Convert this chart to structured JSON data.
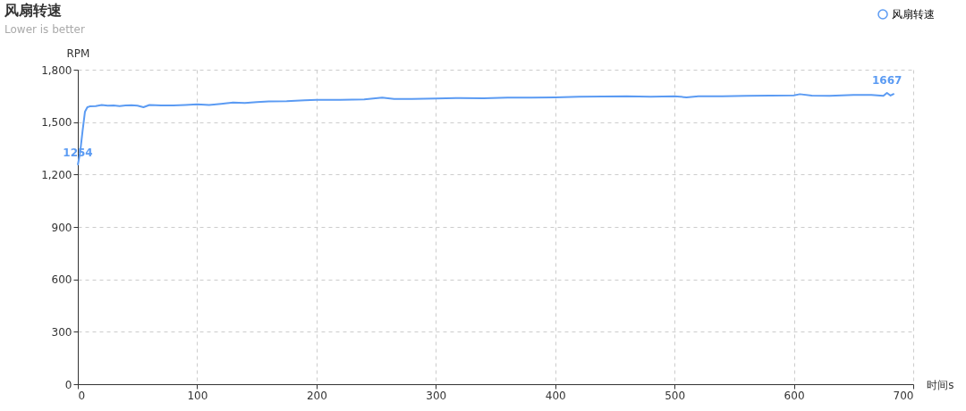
{
  "chart_data": {
    "type": "line",
    "title": "风扇转速",
    "subtitle": "Lower is better",
    "xlabel": "时间s",
    "ylabel": "RPM",
    "xlim": [
      0,
      700
    ],
    "xticks": [
      0,
      100,
      200,
      300,
      400,
      500,
      600,
      700
    ],
    "ylim": [
      0,
      1800
    ],
    "yticks": [
      0,
      300,
      600,
      900,
      {
        "value": 1200,
        "label": "1,200"
      },
      {
        "value": 1500,
        "label": "1,500"
      },
      {
        "value": 1800,
        "label": "1,800"
      }
    ],
    "grid": true,
    "legend": "top right",
    "marker": "none",
    "line_style": "solid",
    "series": [
      {
        "name": "风扇转速",
        "color": "#5b9bf3",
        "x": [
          0,
          2,
          4,
          6,
          8,
          10,
          15,
          20,
          25,
          30,
          35,
          40,
          45,
          50,
          55,
          60,
          70,
          80,
          90,
          100,
          110,
          120,
          130,
          140,
          150,
          160,
          175,
          190,
          200,
          220,
          240,
          255,
          265,
          280,
          300,
          320,
          340,
          360,
          380,
          400,
          420,
          440,
          460,
          480,
          500,
          510,
          520,
          540,
          560,
          580,
          600,
          605,
          615,
          630,
          650,
          665,
          675,
          678,
          681,
          684
        ],
        "values": [
          1254,
          1330,
          1450,
          1560,
          1585,
          1590,
          1592,
          1598,
          1594,
          1596,
          1592,
          1595,
          1597,
          1594,
          1585,
          1598,
          1596,
          1595,
          1598,
          1602,
          1598,
          1605,
          1612,
          1610,
          1615,
          1618,
          1620,
          1625,
          1628,
          1628,
          1630,
          1640,
          1632,
          1633,
          1635,
          1638,
          1637,
          1640,
          1640,
          1642,
          1645,
          1646,
          1648,
          1645,
          1648,
          1642,
          1648,
          1648,
          1650,
          1652,
          1653,
          1660,
          1652,
          1650,
          1655,
          1656,
          1650,
          1667,
          1652,
          1663
        ]
      }
    ],
    "annotations": [
      {
        "text": "1254",
        "x": 0,
        "y": 1254
      },
      {
        "text": "1667",
        "x": 678,
        "y": 1667
      }
    ]
  }
}
